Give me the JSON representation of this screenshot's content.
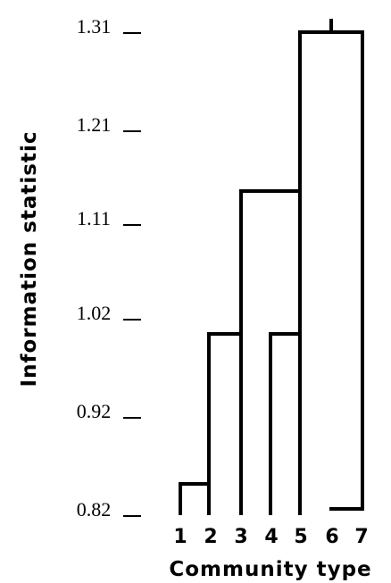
{
  "chart_data": {
    "type": "dendrogram",
    "ylabel": "Information statistic",
    "xlabel": "Community type",
    "y_ticks": [
      "0.82",
      "0.92",
      "1.02",
      "1.11",
      "1.21",
      "1.31"
    ],
    "leaves": [
      "1",
      "2",
      "3",
      "4",
      "5",
      "6",
      "7"
    ],
    "merges": [
      {
        "left": 1,
        "right": 2,
        "height": 0.842
      },
      {
        "left": 6,
        "right": 7,
        "height": 0.82
      },
      {
        "left": 4,
        "right": 5,
        "height": 1.0
      },
      {
        "left": "1-2",
        "right": 3,
        "height": 1.0
      },
      {
        "left": "1-2-3",
        "right": "4-5",
        "height": 1.138
      },
      {
        "left": "1-5",
        "right": "6-7",
        "height": 1.31
      }
    ]
  }
}
